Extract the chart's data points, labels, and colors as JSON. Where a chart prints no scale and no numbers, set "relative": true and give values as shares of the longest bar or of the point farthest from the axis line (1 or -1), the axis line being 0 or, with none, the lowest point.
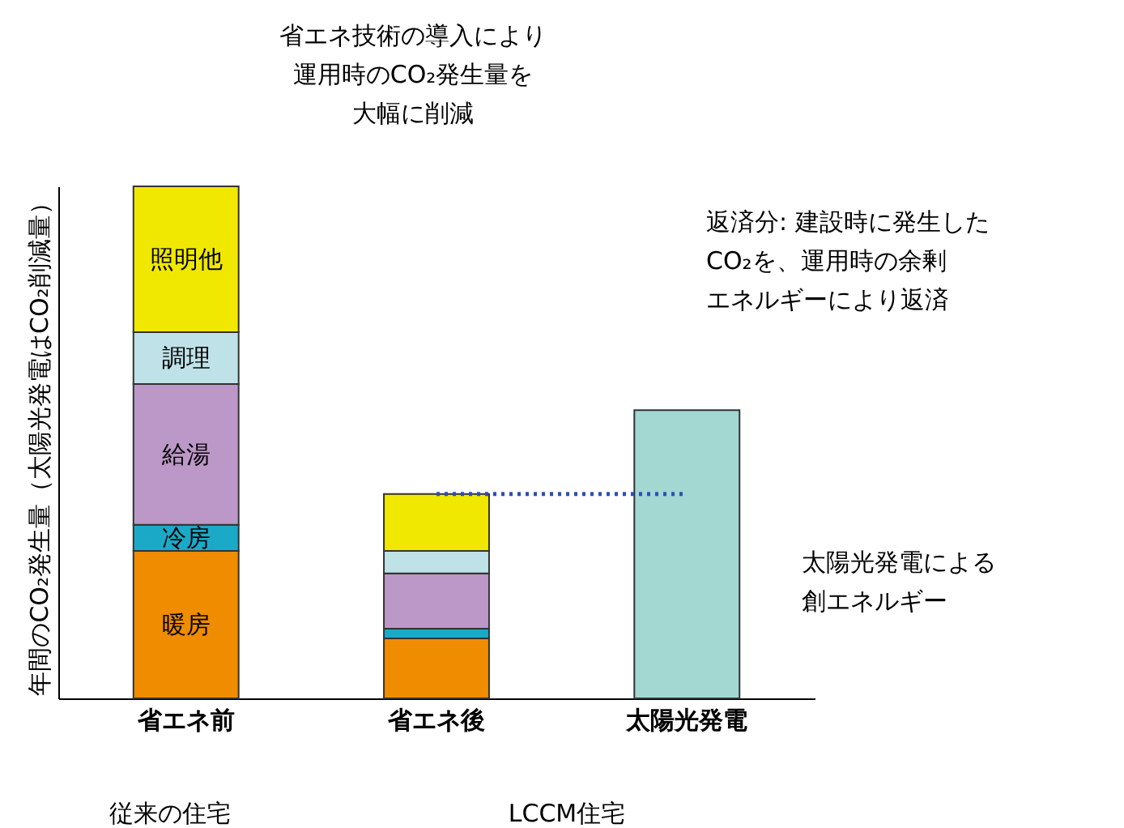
{
  "chart_data": {
    "type": "bar",
    "stacked": true,
    "relative": true,
    "ylabel": "年間のCO₂発生量（太陽光発電はCO₂削減量）",
    "categories": [
      "省エネ前",
      "省エネ後",
      "太陽光発電"
    ],
    "series": [
      {
        "name": "暖房",
        "color": "#f08c00",
        "values": [
          0.288,
          0.117,
          null
        ]
      },
      {
        "name": "冷房",
        "color": "#1aaac8",
        "values": [
          0.051,
          0.019,
          null
        ]
      },
      {
        "name": "給湯",
        "color": "#bc98c8",
        "values": [
          0.275,
          0.108,
          null
        ]
      },
      {
        "name": "調理",
        "color": "#bfe2e8",
        "values": [
          0.101,
          0.044,
          null
        ]
      },
      {
        "name": "照明他",
        "color": "#f0e800",
        "values": [
          0.285,
          0.111,
          null
        ]
      },
      {
        "color": "#a3d8d2",
        "values": [
          null,
          null,
          0.563
        ]
      }
    ],
    "ref_lines": [
      {
        "axis": "y",
        "value": 0.399,
        "color": "#2e4fb8",
        "line_style": "dotted"
      }
    ],
    "annotations": [
      "省エネ技術の導入により運用時のCO₂発生量を大幅に削減",
      "返済分: 建設時に発生したCO₂を、運用時の余剰エネルギーにより返済",
      "太陽光発電による創エネルギー",
      "従来の住宅",
      "LCCM住宅"
    ],
    "legend": false,
    "grid": false
  }
}
